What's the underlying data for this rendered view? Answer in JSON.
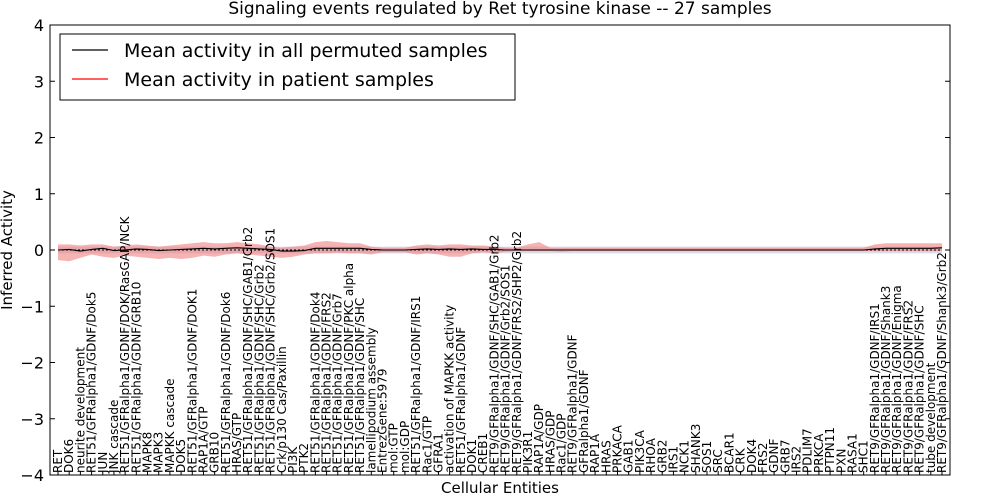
{
  "chart_data": {
    "type": "line",
    "title": "Signaling events regulated by Ret tyrosine kinase -- 27 samples",
    "xlabel": "Cellular Entities",
    "ylabel": "Inferred Activity",
    "ylim": [
      -4,
      4
    ],
    "yticks": [
      "4",
      "3",
      "2",
      "1",
      "0",
      "−1",
      "−2",
      "−3",
      "−4"
    ],
    "grid": false,
    "legend_position": "top-left",
    "categories": [
      "RET",
      "DOK6",
      "neurite development",
      "RET51/GFRalpha1/GDNF/Dok5",
      "JUN",
      "JNK cascade",
      "RET51/GFRalpha1/GDNF/DOK/RasGAP/NCK",
      "RET51/GFRalpha1/GDNF/GRB10",
      "MAPK8",
      "MAPK3",
      "MAPKK cascade",
      "DOK5",
      "RET51/GFRalpha1/GDNF/DOK1",
      "RAP1A/GTP",
      "GRB10",
      "RET51/GFRalpha1/GDNF/Dok6",
      "HRAS/GTP",
      "RET51/GFRalpha1/GDNF/SHC/GAB1/Grb2",
      "RET51/GFRalpha1/GDNF/SHC/Grb2",
      "RET51/GFRalpha1/GDNF/SHC/Grb2/SOS1",
      "Crk/p130 Cas/Paxillin",
      "PI3K",
      "PTK2",
      "RET51/GFRalpha1/GDNF/Dok4",
      "RET51/GFRalpha1/GDNF/FRS2",
      "RET51/GFRalpha1/GDNF/Grb7",
      "RET51/GFRalpha1/GDNF/PKC alpha",
      "RET51/GFRalpha1/GDNF/SHC",
      "lamellipodium assembly",
      "EntrezGene:5979",
      "mol:GTP",
      "mol:GDP",
      "RET51/GFRalpha1/GDNF/IRS1",
      "Rac1/GTP",
      "GFRA1",
      "activation of MAPKK activity",
      "RET51/GFRalpha1/GDNF",
      "DOK1",
      "CREB1",
      "RET9/GFRalpha1/GDNF/SHC/GAB1/Grb2",
      "RET9/GFRalpha1/GDNF/Grb2/SOS1",
      "RET9/GFRalpha1/GDNF/FRS2/SHP2/Grb2",
      "PIK3R1",
      "RAP1A/GDP",
      "HRAS/GDP",
      "Rac1/GDP",
      "RET9/GFRalpha1/GDNF",
      "GFRalpha1/GDNF",
      "RAP1A",
      "HRAS",
      "PRKACA",
      "GAB1",
      "PIK3CA",
      "RHOA",
      "GRB2",
      "IRS1",
      "NCK1",
      "SHANK3",
      "SOS1",
      "SRC",
      "BCAR1",
      "CRK",
      "DOK4",
      "FRS2",
      "GDNF",
      "GRB7",
      "IRS2",
      "PDLIM7",
      "PRKCA",
      "PTPN11",
      "PXN",
      "RASA1",
      "SHC1",
      "RET9/GFRalpha1/GDNF/IRS1",
      "RET9/GFRalpha1/GDNF/Shank3",
      "RET9/GFRalpha1/GDNF/Enigma",
      "RET9/GFRalpha1/GDNF/FRS2",
      "RET9/GFRalpha1/GDNF/SHC",
      "tube development",
      "RET9/GFRalpha1/GDNF/Shank3/Grb2"
    ],
    "series": [
      {
        "name": "Mean activity in all permuted samples",
        "color": "#000000",
        "values": [
          0.0,
          0.0,
          0.0,
          0.0,
          0.0,
          0.0,
          0.0,
          0.0,
          0.0,
          0.0,
          0.0,
          0.0,
          0.0,
          0.0,
          0.0,
          0.0,
          0.0,
          0.0,
          0.0,
          0.0,
          0.0,
          0.0,
          0.0,
          0.0,
          0.0,
          0.0,
          0.0,
          0.0,
          0.0,
          0.0,
          0.0,
          0.0,
          0.0,
          0.0,
          0.0,
          0.0,
          0.0,
          0.0,
          0.0,
          0.0,
          0.0,
          0.0,
          0.0,
          0.0,
          0.0,
          0.0,
          0.0,
          0.0,
          0.0,
          0.0,
          0.0,
          0.0,
          0.0,
          0.0,
          0.0,
          0.0,
          0.0,
          0.0,
          0.0,
          0.0,
          0.0,
          0.0,
          0.0,
          0.0,
          0.0,
          0.0,
          0.0,
          0.0,
          0.0,
          0.0,
          0.0,
          0.0,
          0.0,
          0.0,
          0.0,
          0.0,
          0.0,
          0.0,
          0.0,
          0.0
        ]
      },
      {
        "name": "Mean activity in patient samples",
        "color": "#ff0000",
        "band_color": "#f08080",
        "values": [
          0.0,
          0.01,
          -0.02,
          0.01,
          0.03,
          -0.01,
          0.0,
          0.02,
          0.01,
          -0.01,
          0.0,
          0.01,
          0.02,
          0.03,
          0.02,
          0.03,
          0.04,
          0.03,
          0.02,
          0.01,
          -0.02,
          -0.02,
          -0.01,
          0.03,
          0.03,
          0.03,
          0.03,
          0.03,
          0.01,
          0.0,
          0.0,
          0.0,
          0.01,
          0.02,
          0.01,
          0.02,
          0.01,
          0.02,
          0.01,
          0.01,
          0.0,
          0.0,
          0.0,
          0.0,
          0.0,
          0.0,
          0.0,
          0.0,
          0.0,
          0.0,
          0.0,
          0.0,
          0.0,
          0.0,
          0.0,
          0.0,
          0.0,
          0.0,
          0.0,
          0.0,
          0.0,
          0.0,
          0.0,
          0.0,
          0.0,
          0.0,
          0.0,
          0.0,
          0.0,
          0.0,
          0.0,
          0.0,
          0.0,
          0.02,
          0.03,
          0.03,
          0.03,
          0.03,
          0.03,
          0.04
        ],
        "lower": [
          -0.18,
          -0.2,
          -0.14,
          -0.08,
          -0.12,
          -0.14,
          -0.1,
          -0.12,
          -0.14,
          -0.16,
          -0.14,
          -0.16,
          -0.14,
          -0.1,
          -0.12,
          -0.08,
          -0.06,
          -0.08,
          -0.1,
          -0.12,
          -0.14,
          -0.12,
          -0.08,
          -0.06,
          -0.06,
          -0.05,
          -0.06,
          -0.06,
          -0.08,
          -0.04,
          -0.04,
          -0.04,
          -0.08,
          -0.06,
          -0.08,
          -0.12,
          -0.12,
          -0.06,
          -0.04,
          -0.06,
          -0.03,
          -0.02,
          -0.02,
          -0.02,
          -0.02,
          -0.03,
          -0.02,
          -0.02,
          -0.02,
          -0.02,
          -0.02,
          -0.02,
          -0.02,
          -0.02,
          -0.02,
          -0.02,
          -0.02,
          -0.02,
          -0.02,
          -0.02,
          -0.02,
          -0.02,
          -0.02,
          -0.02,
          -0.02,
          -0.02,
          -0.02,
          -0.02,
          -0.02,
          -0.02,
          -0.02,
          -0.02,
          -0.02,
          -0.02,
          -0.02,
          -0.02,
          -0.02,
          -0.02,
          -0.02,
          -0.02
        ],
        "upper": [
          0.1,
          0.1,
          0.08,
          0.1,
          0.1,
          0.06,
          0.08,
          0.1,
          0.08,
          0.06,
          0.08,
          0.1,
          0.12,
          0.14,
          0.12,
          0.12,
          0.14,
          0.12,
          0.1,
          0.06,
          0.04,
          0.06,
          0.08,
          0.14,
          0.16,
          0.14,
          0.12,
          0.12,
          0.06,
          0.04,
          0.04,
          0.04,
          0.08,
          0.1,
          0.08,
          0.1,
          0.1,
          0.08,
          0.08,
          0.06,
          0.04,
          0.04,
          0.1,
          0.14,
          0.04,
          0.04,
          0.04,
          0.04,
          0.04,
          0.04,
          0.04,
          0.04,
          0.04,
          0.04,
          0.04,
          0.04,
          0.04,
          0.04,
          0.04,
          0.04,
          0.04,
          0.04,
          0.04,
          0.04,
          0.04,
          0.04,
          0.04,
          0.04,
          0.04,
          0.04,
          0.04,
          0.04,
          0.04,
          0.1,
          0.12,
          0.12,
          0.12,
          0.12,
          0.12,
          0.12
        ]
      }
    ],
    "permuted_band": {
      "lower": -0.06,
      "upper": 0.06,
      "color": "#b0b0cc"
    }
  }
}
